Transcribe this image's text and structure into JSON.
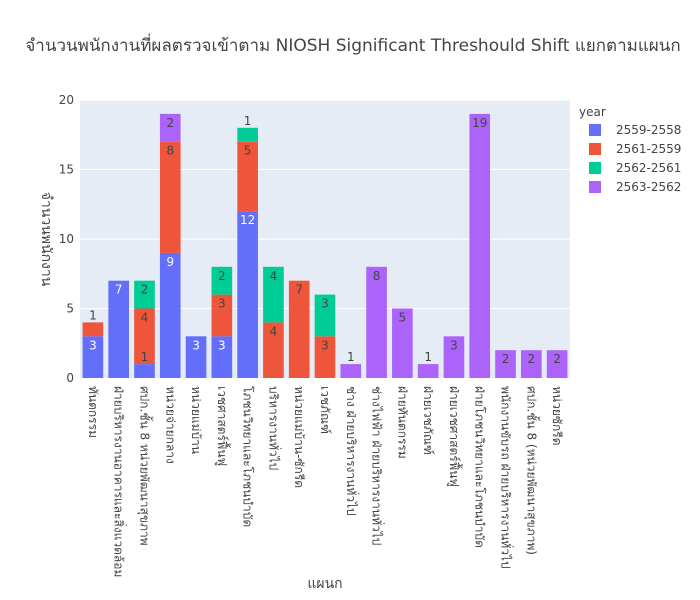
{
  "chart_data": {
    "type": "bar",
    "barmode": "stack",
    "title": "จำนวนพนักงานที่ผลตรวจเข้าตาม NIOSH Significant Threshould Shift แยกตามแผนก",
    "xlabel": "แผนก",
    "ylabel": "จำนวนพนักงาน",
    "ylim": [
      0,
      20
    ],
    "yticks": [
      0,
      5,
      10,
      15,
      20
    ],
    "grid": true,
    "legend": {
      "title": "year",
      "placement": "top-right"
    },
    "categories": [
      "ทันตกรรม",
      "ฝ่ายบริหารงานอาคารและสิ่งแวดล้อม",
      "ศปก.ชั้น 8 หน่วยพัฒนาสุขภาพ",
      "หน่วยจ่ายกลาง",
      "หน่วยแม่บ้าน",
      "เวชศาสตร์ฟื้นฟู",
      "โภชนวิทยาและโภชนบำบัด",
      "บริหารงานทั่วไป",
      "หน่วยแม่บ้าน-ซักรีด",
      "เวชภัณฑ์",
      "ช่าง ฝ่ายบริหารงานทั่วไป",
      "ช่างไฟฟ้า ฝ่ายบริหารงานทั่วไป",
      "ฝ่ายทันตกรรม",
      "ฝ่ายเวชภัณฑ์",
      "ฝ่ายเวชศาสตร์ฟื้นฟู",
      "ฝ่ายโภชนวิทยาและโภชนบำบัด",
      "พนักงานขับรถ ฝ่ายบริหารงานทั่วไป",
      "ศปก.ชั้น 8 (หน่วยพัฒนาสุขภาพ)",
      "หน่วยซักรีด"
    ],
    "series": [
      {
        "name": "2559-2558",
        "color": "#636efa",
        "values": [
          3,
          7,
          1,
          9,
          3,
          3,
          12,
          0,
          0,
          0,
          0,
          0,
          0,
          0,
          0,
          0,
          0,
          0,
          0
        ]
      },
      {
        "name": "2561-2559",
        "color": "#ef553b",
        "values": [
          1,
          0,
          4,
          8,
          0,
          3,
          5,
          4,
          7,
          3,
          0,
          0,
          0,
          0,
          0,
          0,
          0,
          0,
          0
        ]
      },
      {
        "name": "2562-2561",
        "color": "#00cc96",
        "values": [
          0,
          0,
          2,
          0,
          0,
          2,
          1,
          4,
          0,
          3,
          0,
          0,
          0,
          0,
          0,
          0,
          0,
          0,
          0
        ]
      },
      {
        "name": "2563-2562",
        "color": "#ab63fa",
        "values": [
          0,
          0,
          0,
          2,
          0,
          0,
          0,
          0,
          0,
          0,
          1,
          8,
          5,
          1,
          3,
          19,
          2,
          2,
          2
        ]
      }
    ]
  }
}
